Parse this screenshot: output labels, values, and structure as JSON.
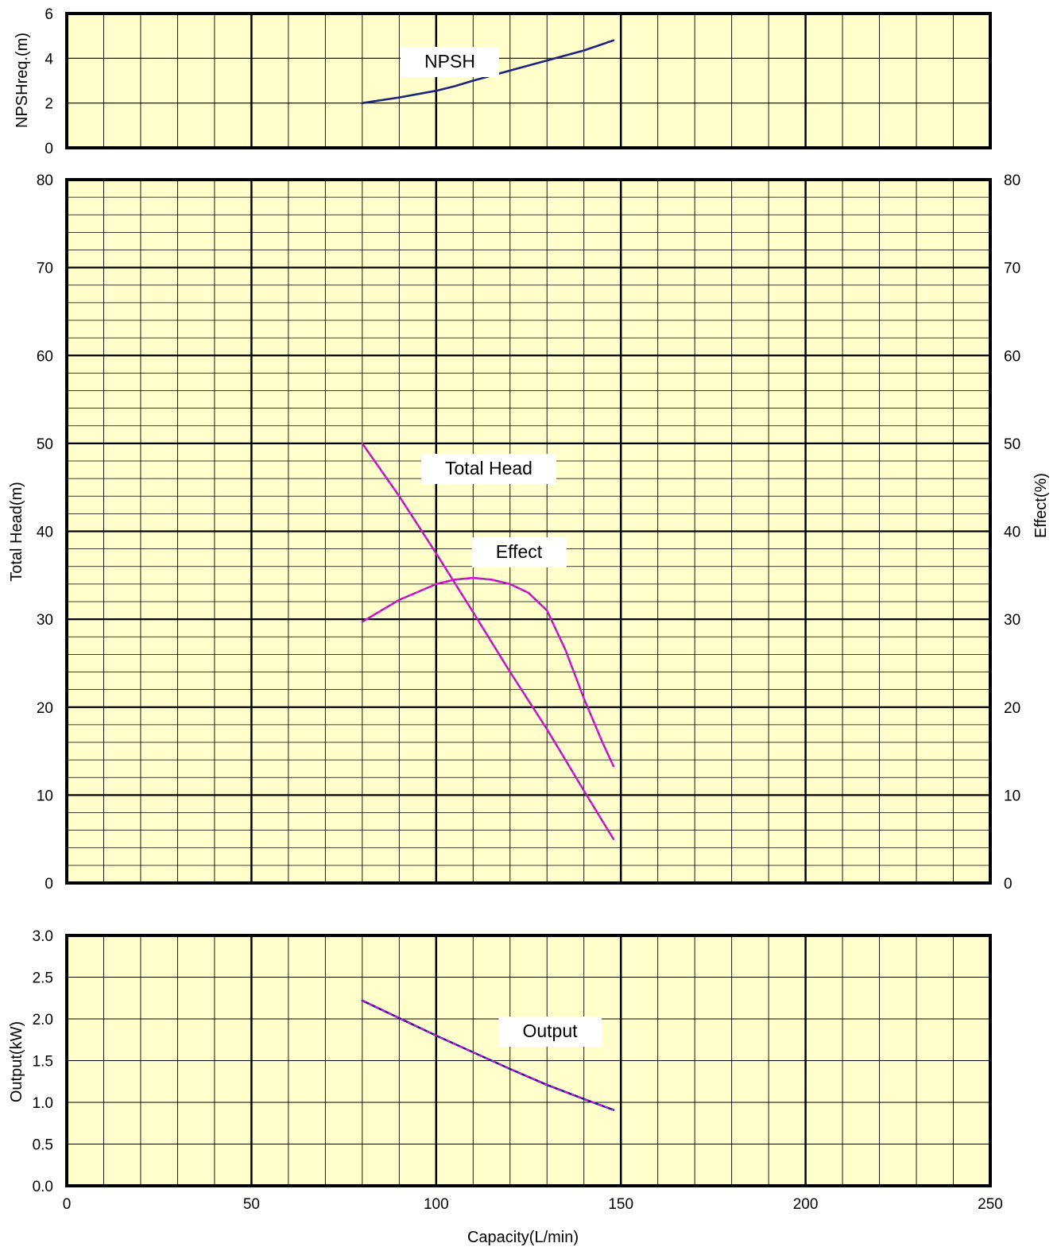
{
  "chart_data": [
    {
      "type": "line",
      "panel": "npsh",
      "ylabel": "NPSHreq.(m)",
      "xlim": [
        0,
        250
      ],
      "ylim": [
        0,
        6
      ],
      "yticks": [
        "0",
        "2",
        "4",
        "6"
      ],
      "grid": true,
      "series": [
        {
          "name": "NPSH",
          "color": "#1a237e",
          "x": [
            80,
            90,
            100,
            105,
            110,
            120,
            130,
            140,
            148
          ],
          "y": [
            2.0,
            2.25,
            2.55,
            2.75,
            3.0,
            3.45,
            3.9,
            4.35,
            4.8
          ]
        }
      ]
    },
    {
      "type": "line",
      "panel": "head",
      "ylabel": "Total Head(m)",
      "y2label": "Effect(%)",
      "xlim": [
        0,
        250
      ],
      "ylim": [
        0,
        80
      ],
      "y2lim": [
        0,
        80
      ],
      "yticks": [
        "0",
        "10",
        "20",
        "30",
        "40",
        "50",
        "60",
        "70",
        "80"
      ],
      "grid": true,
      "series": [
        {
          "name": "Total Head",
          "color": "#ff00ff",
          "dash_color": "#555555",
          "x": [
            80,
            90,
            100,
            110,
            120,
            130,
            140,
            148
          ],
          "y": [
            50,
            44,
            37.5,
            30.8,
            24,
            17.5,
            10.5,
            5
          ]
        },
        {
          "name": "Effect",
          "color": "#ff00ff",
          "dash_color": "#555555",
          "axis": "right",
          "x": [
            80,
            90,
            100,
            105,
            110,
            115,
            120,
            125,
            130,
            135,
            140,
            145,
            148
          ],
          "y": [
            29.7,
            32.2,
            34.0,
            34.5,
            34.7,
            34.5,
            34.0,
            33.0,
            31.0,
            26.5,
            21.0,
            16.0,
            13.3
          ]
        }
      ]
    },
    {
      "type": "line",
      "panel": "output",
      "ylabel": "Output(kW)",
      "xlabel": "Capacity(L/min)",
      "xlim": [
        0,
        250
      ],
      "ylim": [
        0,
        3.0
      ],
      "xticks": [
        "0",
        "50",
        "100",
        "150",
        "200",
        "250"
      ],
      "yticks": [
        "0.0",
        "0.5",
        "1.0",
        "1.5",
        "2.0",
        "2.5",
        "3.0"
      ],
      "grid": true,
      "series": [
        {
          "name": "Output",
          "color": "#1a237e",
          "dash_color": "#ff00ff",
          "x": [
            80,
            90,
            100,
            110,
            120,
            130,
            140,
            148
          ],
          "y": [
            2.22,
            2.01,
            1.8,
            1.6,
            1.4,
            1.21,
            1.04,
            0.91
          ]
        }
      ]
    }
  ],
  "colors": {
    "plot_background": "#ffffcc",
    "frame": "#000000",
    "grid": "#000000"
  }
}
